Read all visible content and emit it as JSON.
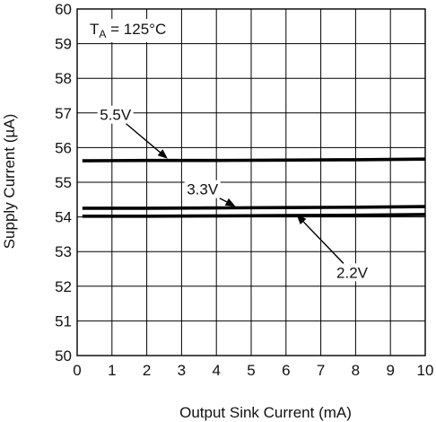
{
  "chart_data": {
    "type": "line",
    "title": "",
    "xlabel": "Output Sink Current (mA)",
    "ylabel": "Supply Current (µA)",
    "xlim": [
      0,
      10
    ],
    "ylim": [
      50,
      60
    ],
    "xticks": [
      "0",
      "1",
      "2",
      "3",
      "4",
      "5",
      "6",
      "7",
      "8",
      "9",
      "10"
    ],
    "yticks": [
      "50",
      "51",
      "52",
      "53",
      "54",
      "55",
      "56",
      "57",
      "58",
      "59",
      "60"
    ],
    "grid": true,
    "condition": {
      "prefix": "T",
      "subscript": "A",
      "suffix": " = 125°C"
    },
    "series": [
      {
        "name": "5.5V",
        "x": [
          0.15,
          2,
          4,
          6,
          8,
          10
        ],
        "y": [
          55.62,
          55.63,
          55.63,
          55.64,
          55.65,
          55.67
        ]
      },
      {
        "name": "3.3V",
        "x": [
          0.15,
          2,
          4,
          6,
          8,
          10
        ],
        "y": [
          54.25,
          54.25,
          54.26,
          54.27,
          54.28,
          54.3
        ]
      },
      {
        "name": "2.2V",
        "x": [
          0.15,
          2,
          4,
          6,
          8,
          10
        ],
        "y": [
          54.02,
          54.02,
          54.03,
          54.04,
          54.05,
          54.07
        ]
      }
    ],
    "annotations": [
      {
        "text": "5.5V",
        "label_x": 1.1,
        "label_y": 56.95,
        "tip_x": 2.6,
        "tip_y": 55.68
      },
      {
        "text": "3.3V",
        "label_x": 3.6,
        "label_y": 54.8,
        "tip_x": 4.55,
        "tip_y": 54.3
      },
      {
        "text": "2.2V",
        "label_x": 7.9,
        "label_y": 52.4,
        "tip_x": 6.3,
        "tip_y": 54.07
      }
    ]
  }
}
